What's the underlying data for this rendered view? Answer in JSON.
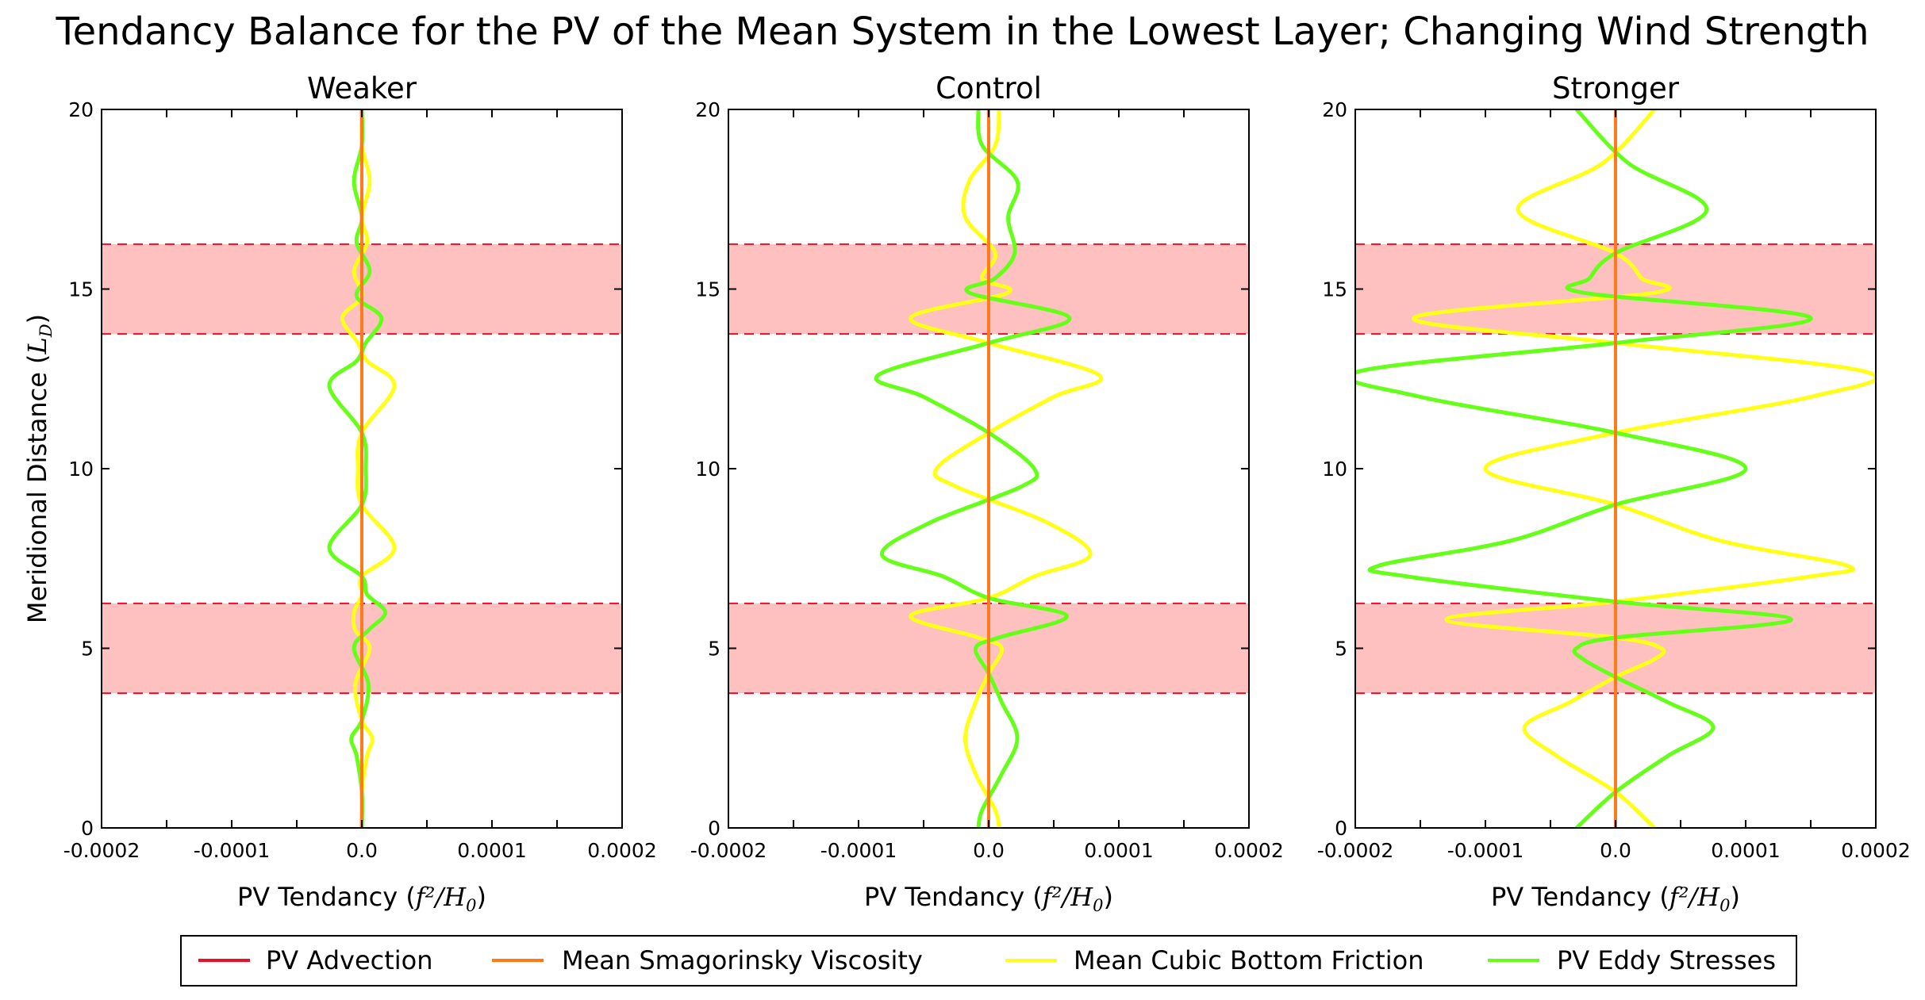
{
  "figure": {
    "title": "Tendancy Balance for the PV of the Mean System in the Lowest Layer; Changing Wind Strength"
  },
  "colors": {
    "pv_advection": "#e8102a",
    "smagorinsky": "#ff7a1a",
    "bottom_friction": "#ffff1a",
    "eddy_stresses": "#66ff1a",
    "band_fill": "#ffc0c0",
    "band_line": "#e8102a"
  },
  "legend": {
    "placement": "bottom-center",
    "entries": [
      "PV Advection",
      "Mean Smagorinsky Viscosity",
      "Mean Cubic Bottom Friction",
      "PV Eddy Stresses"
    ]
  },
  "chart_data": [
    {
      "type": "line",
      "title": "Weaker",
      "xlabel_text": "PV Tendancy (",
      "xlabel_math": "f²/H",
      "xlabel_sub": "0",
      "xlabel_close": ")",
      "ylabel_text": "Meridional Distance (",
      "ylabel_math": "L",
      "ylabel_sub": "D",
      "ylabel_close": ")",
      "xlim": [
        -0.0002,
        0.0002
      ],
      "ylim": [
        0,
        20
      ],
      "xticks": [
        "-0.0002",
        "-0.0001",
        "0.0",
        "0.0001",
        "0.0002"
      ],
      "yticks": [
        "0",
        "5",
        "10",
        "15",
        "20"
      ],
      "shaded_bands": [
        [
          3.75,
          6.25
        ],
        [
          13.75,
          16.25
        ]
      ],
      "series": [
        {
          "name": "PV Advection",
          "x": [
            0,
            0,
            0,
            0,
            0
          ],
          "y": [
            0,
            5,
            10,
            15,
            20
          ]
        },
        {
          "name": "Mean Smagorinsky Viscosity",
          "x": [
            0,
            0,
            0,
            0,
            0
          ],
          "y": [
            0,
            5,
            10,
            15,
            20
          ]
        },
        {
          "name": "Mean Cubic Bottom Friction",
          "y": [
            0,
            1,
            2,
            2.5,
            3,
            4,
            5,
            5.5,
            6,
            6.5,
            7,
            7.8,
            9,
            10,
            11,
            12.3,
            13,
            13.5,
            14.2,
            14.8,
            15.5,
            16.3,
            17,
            18,
            19,
            20
          ],
          "x": [
            0,
            0,
            4e-06,
            8e-06,
            0,
            -5e-06,
            6e-06,
            -5e-06,
            -6e-06,
            0,
            0,
            2.5e-05,
            0,
            -3e-06,
            0,
            2.5e-05,
            4e-06,
            -3e-06,
            -1.5e-05,
            0,
            -6e-06,
            4e-06,
            0,
            6e-06,
            0,
            0
          ]
        },
        {
          "name": "PV Eddy Stresses",
          "y": [
            0,
            1,
            2,
            2.5,
            3,
            4,
            5,
            5.5,
            6,
            6.5,
            7,
            7.8,
            9,
            10,
            11,
            12.3,
            13,
            13.5,
            14.2,
            14.8,
            15.5,
            16.3,
            17,
            18,
            19,
            20
          ],
          "x": [
            0,
            0,
            -4e-06,
            -8e-06,
            0,
            5e-06,
            -6e-06,
            5e-06,
            1.8e-05,
            4e-06,
            0,
            -2.5e-05,
            0,
            3e-06,
            0,
            -2.5e-05,
            -4e-06,
            3e-06,
            1.5e-05,
            -4e-06,
            6e-06,
            -4e-06,
            0,
            -6e-06,
            0,
            0
          ]
        }
      ]
    },
    {
      "type": "line",
      "title": "Control",
      "xlabel_text": "PV Tendancy (",
      "xlabel_math": "f²/H",
      "xlabel_sub": "0",
      "xlabel_close": ")",
      "ylabel_text": "",
      "ylabel_math": "",
      "ylabel_sub": "",
      "ylabel_close": "",
      "xlim": [
        -0.0002,
        0.0002
      ],
      "ylim": [
        0,
        20
      ],
      "xticks": [
        "-0.0002",
        "-0.0001",
        "0.0",
        "0.0001",
        "0.0002"
      ],
      "yticks": [
        "0",
        "5",
        "10",
        "15",
        "20"
      ],
      "shaded_bands": [
        [
          3.75,
          6.25
        ],
        [
          13.75,
          16.25
        ]
      ],
      "series": [
        {
          "name": "PV Advection",
          "x": [
            0,
            0,
            0,
            0,
            0
          ],
          "y": [
            0,
            5,
            10,
            15,
            20
          ]
        },
        {
          "name": "Mean Smagorinsky Viscosity",
          "x": [
            0,
            0,
            0,
            0,
            0
          ],
          "y": [
            0,
            5,
            10,
            15,
            20
          ]
        },
        {
          "name": "Mean Cubic Bottom Friction",
          "y": [
            0,
            0.5,
            1.5,
            2.5,
            3.5,
            4.3,
            5.0,
            5.3,
            5.9,
            6.4,
            7,
            7.6,
            8.5,
            9.5,
            10,
            11,
            12,
            12.6,
            13.5,
            14.2,
            14.9,
            15.3,
            16,
            17,
            18,
            19,
            20
          ],
          "x": [
            8e-06,
            5e-06,
            -1e-05,
            -1.8e-05,
            -1e-05,
            0,
            1e-05,
            -8e-06,
            -6e-05,
            0,
            3.5e-05,
            7.8e-05,
            4.5e-05,
            -2.5e-05,
            -4e-05,
            0,
            5e-05,
            8.5e-05,
            0,
            -6e-05,
            1.5e-05,
            -5e-06,
            5e-06,
            -1.8e-05,
            -1.5e-05,
            5e-06,
            8e-06
          ]
        },
        {
          "name": "PV Eddy Stresses",
          "y": [
            0,
            0.5,
            1.5,
            2.5,
            3.5,
            4.3,
            5.0,
            5.3,
            5.9,
            6.4,
            7,
            7.6,
            8.5,
            9.5,
            10,
            11,
            12,
            12.6,
            13.5,
            14.2,
            14.9,
            15.3,
            16,
            17,
            18,
            19,
            20
          ],
          "x": [
            -8e-06,
            -5e-06,
            1e-05,
            2.2e-05,
            1e-05,
            0,
            -1e-05,
            8e-06,
            6e-05,
            0,
            -3.5e-05,
            -8.2e-05,
            -4.5e-05,
            2.5e-05,
            3.5e-05,
            0,
            -5e-05,
            -8.5e-05,
            0,
            6.2e-05,
            -1.5e-05,
            5e-06,
            2e-05,
            1.5e-05,
            2.2e-05,
            -5e-06,
            -8e-06
          ]
        }
      ]
    },
    {
      "type": "line",
      "title": "Stronger",
      "xlabel_text": "PV Tendancy (",
      "xlabel_math": "f²/H",
      "xlabel_sub": "0",
      "xlabel_close": ")",
      "ylabel_text": "",
      "ylabel_math": "",
      "ylabel_sub": "",
      "ylabel_close": "",
      "xlim": [
        -0.0002,
        0.0002
      ],
      "ylim": [
        0,
        20
      ],
      "xticks": [
        "-0.0002",
        "-0.0001",
        "0.0",
        "0.0001",
        "0.0002"
      ],
      "yticks": [
        "0",
        "5",
        "10",
        "15",
        "20"
      ],
      "shaded_bands": [
        [
          3.75,
          6.25
        ],
        [
          13.75,
          16.25
        ]
      ],
      "series": [
        {
          "name": "PV Advection",
          "x": [
            0,
            0,
            0,
            0,
            0
          ],
          "y": [
            0,
            5,
            10,
            15,
            20
          ]
        },
        {
          "name": "Mean Smagorinsky Viscosity",
          "x": [
            0,
            0,
            0,
            0,
            0
          ],
          "y": [
            0,
            5,
            10,
            15,
            20
          ]
        },
        {
          "name": "Mean Cubic Bottom Friction",
          "y": [
            0,
            1,
            2,
            2.8,
            3.5,
            4.2,
            4.7,
            5.0,
            5.3,
            5.8,
            6.3,
            7,
            7.3,
            8,
            9,
            10,
            11,
            12,
            12.7,
            13.5,
            14.2,
            14.9,
            15.3,
            16,
            17.2,
            18.5,
            20
          ],
          "x": [
            3e-05,
            0,
            -4.5e-05,
            -7e-05,
            -3.5e-05,
            0,
            3e-05,
            3.5e-05,
            0,
            -0.00013,
            0,
            0.00015,
            0.000178,
            8e-05,
            0,
            -0.0001,
            0,
            0.00015,
            0.000192,
            0,
            -0.000155,
            3e-05,
            2e-05,
            0,
            -7.5e-05,
            -1e-05,
            3e-05
          ]
        },
        {
          "name": "PV Eddy Stresses",
          "y": [
            0,
            1,
            2,
            2.8,
            3.5,
            4.2,
            4.7,
            5.0,
            5.3,
            5.8,
            6.3,
            7,
            7.3,
            8,
            9,
            10,
            11,
            12,
            12.7,
            13.5,
            14.2,
            14.9,
            15.3,
            16,
            17.2,
            18.5,
            20
          ],
          "x": [
            -3e-05,
            0,
            4e-05,
            7.5e-05,
            4e-05,
            0,
            -2.5e-05,
            -3e-05,
            0,
            0.000135,
            0,
            -0.00016,
            -0.000182,
            -8e-05,
            0,
            0.0001,
            0,
            -0.00015,
            -0.000198,
            0,
            0.00015,
            -2.5e-05,
            -2e-05,
            0,
            7e-05,
            1e-05,
            -3e-05
          ]
        }
      ]
    }
  ]
}
